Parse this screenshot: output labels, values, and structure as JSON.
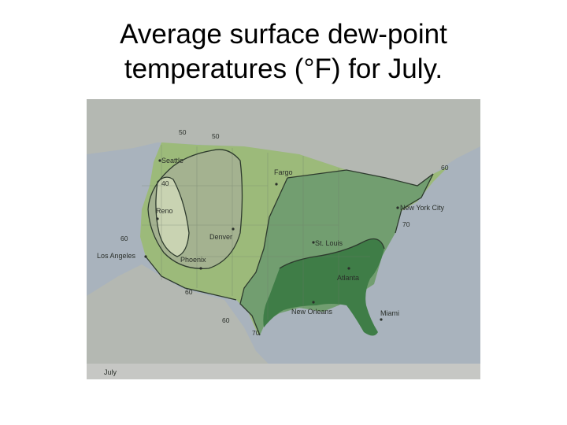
{
  "title": {
    "line1": "Average surface dew-point",
    "line2": "temperatures (°F) for July."
  },
  "map": {
    "caption": "July",
    "cities": [
      {
        "key": "seattle",
        "label": "Seattle"
      },
      {
        "key": "fargo",
        "label": "Fargo"
      },
      {
        "key": "reno",
        "label": "Reno"
      },
      {
        "key": "denver",
        "label": "Denver"
      },
      {
        "key": "los_angeles",
        "label": "Los Angeles"
      },
      {
        "key": "phoenix",
        "label": "Phoenix"
      },
      {
        "key": "st_louis",
        "label": "St. Louis"
      },
      {
        "key": "new_york_city",
        "label": "New York City"
      },
      {
        "key": "atlanta",
        "label": "Atlanta"
      },
      {
        "key": "new_orleans",
        "label": "New Orleans"
      },
      {
        "key": "miami",
        "label": "Miami"
      }
    ],
    "isotherms": [
      {
        "key": "i50a",
        "label": "50"
      },
      {
        "key": "i50b",
        "label": "50"
      },
      {
        "key": "i40",
        "label": "40"
      },
      {
        "key": "i60a",
        "label": "60"
      },
      {
        "key": "i60b",
        "label": "60"
      },
      {
        "key": "i60c",
        "label": "60"
      },
      {
        "key": "i70a",
        "label": "70"
      },
      {
        "key": "i70b",
        "label": "70"
      },
      {
        "key": "i60d",
        "label": "60"
      }
    ],
    "colors": {
      "water": "#a9b3bd",
      "land_outside": "#b4b8b2",
      "zone_40": "#c9d3b2",
      "zone_50": "#a4b290",
      "zone_60": "#9cba7a",
      "zone_70": "#729e70",
      "zone_gt70": "#3f7d47"
    }
  }
}
